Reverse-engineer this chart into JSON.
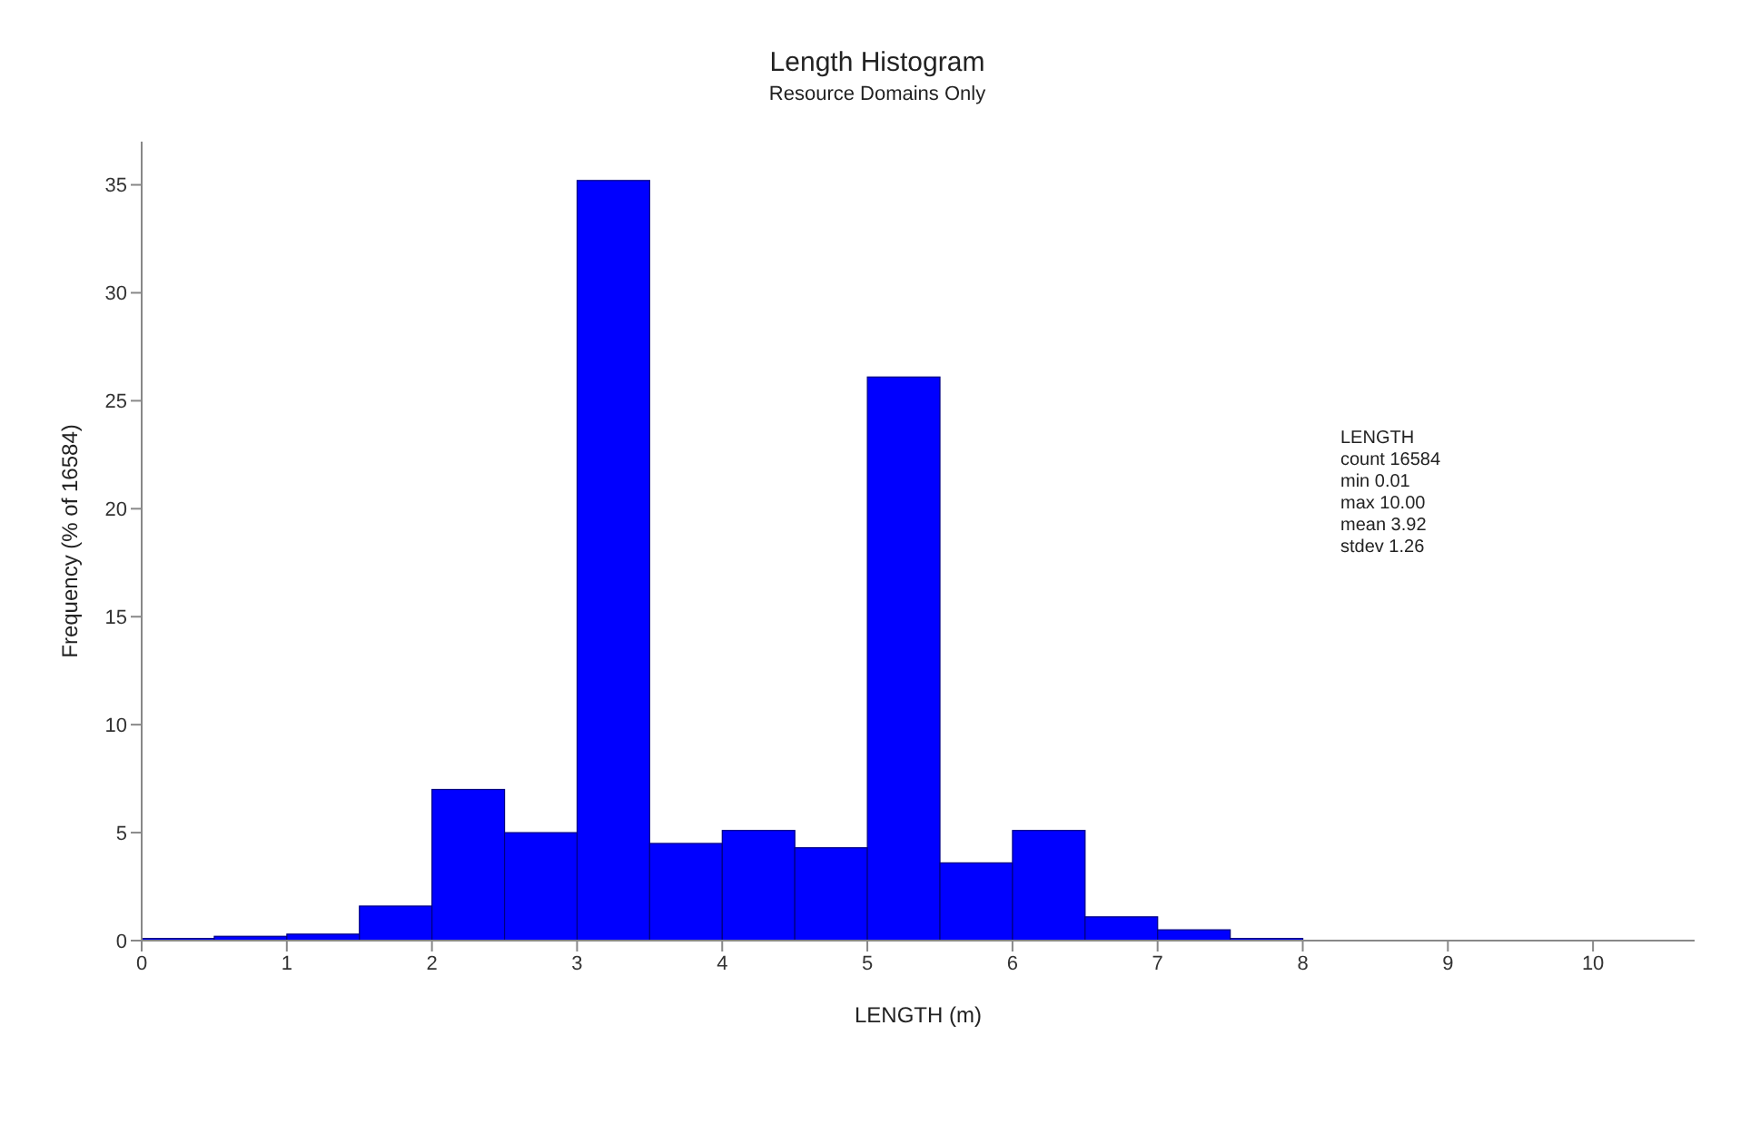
{
  "chart_data": {
    "type": "histogram",
    "title": "Length Histogram",
    "subtitle": "Resource Domains Only",
    "xlabel": "LENGTH (m)",
    "ylabel": "Frequency (% of 16584)",
    "bins": [
      0,
      0.5,
      1,
      1.5,
      2,
      2.5,
      3,
      3.5,
      4,
      4.5,
      5,
      5.5,
      6,
      6.5,
      7,
      7.5,
      8
    ],
    "values": [
      0.1,
      0.2,
      0.3,
      1.6,
      7.0,
      5.0,
      35.2,
      4.5,
      5.1,
      4.3,
      26.1,
      3.6,
      5.1,
      1.1,
      0.5,
      0.1
    ],
    "color": "#0000ff",
    "xlim": [
      0,
      10.7
    ],
    "xticks": [
      0,
      1,
      2,
      3,
      4,
      5,
      6,
      7,
      8,
      9,
      10
    ],
    "ylim": [
      0,
      37
    ],
    "yticks": [
      0,
      5,
      10,
      15,
      20,
      25,
      30,
      35
    ],
    "grid": false,
    "legend": false,
    "annotations": [
      "LENGTH",
      "count 16584",
      "min 0.01",
      "max 10.00",
      "mean 3.92",
      "stdev 1.26"
    ]
  }
}
